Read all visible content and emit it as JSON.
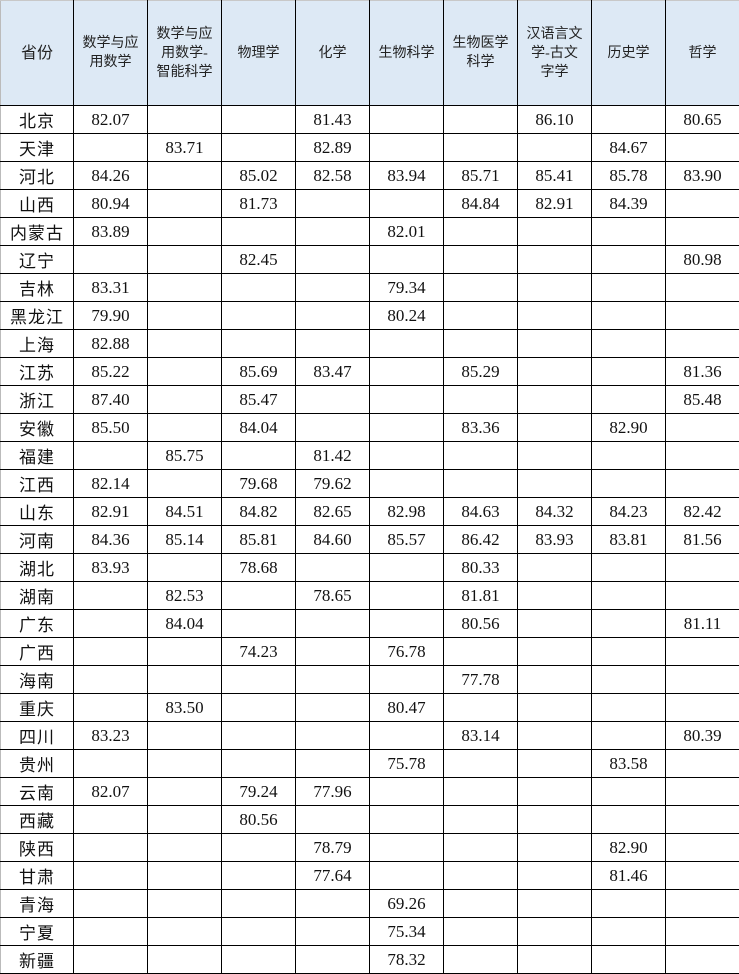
{
  "table": {
    "headers": [
      "省份",
      "数学与应\n用数学",
      "数学与应\n用数学-\n智能科学",
      "物理学",
      "化学",
      "生物科学",
      "生物医学\n科学",
      "汉语言文\n学-古文\n字学",
      "历史学",
      "哲学"
    ],
    "rows": [
      [
        "北京",
        "82.07",
        "",
        "",
        "81.43",
        "",
        "",
        "86.10",
        "",
        "80.65"
      ],
      [
        "天津",
        "",
        "83.71",
        "",
        "82.89",
        "",
        "",
        "",
        "84.67",
        ""
      ],
      [
        "河北",
        "84.26",
        "",
        "85.02",
        "82.58",
        "83.94",
        "85.71",
        "85.41",
        "85.78",
        "83.90"
      ],
      [
        "山西",
        "80.94",
        "",
        "81.73",
        "",
        "",
        "84.84",
        "82.91",
        "84.39",
        ""
      ],
      [
        "内蒙古",
        "83.89",
        "",
        "",
        "",
        "82.01",
        "",
        "",
        "",
        ""
      ],
      [
        "辽宁",
        "",
        "",
        "82.45",
        "",
        "",
        "",
        "",
        "",
        "80.98"
      ],
      [
        "吉林",
        "83.31",
        "",
        "",
        "",
        "79.34",
        "",
        "",
        "",
        ""
      ],
      [
        "黑龙江",
        "79.90",
        "",
        "",
        "",
        "80.24",
        "",
        "",
        "",
        ""
      ],
      [
        "上海",
        "82.88",
        "",
        "",
        "",
        "",
        "",
        "",
        "",
        ""
      ],
      [
        "江苏",
        "85.22",
        "",
        "85.69",
        "83.47",
        "",
        "85.29",
        "",
        "",
        "81.36"
      ],
      [
        "浙江",
        "87.40",
        "",
        "85.47",
        "",
        "",
        "",
        "",
        "",
        "85.48"
      ],
      [
        "安徽",
        "85.50",
        "",
        "84.04",
        "",
        "",
        "83.36",
        "",
        "82.90",
        ""
      ],
      [
        "福建",
        "",
        "85.75",
        "",
        "81.42",
        "",
        "",
        "",
        "",
        ""
      ],
      [
        "江西",
        "82.14",
        "",
        "79.68",
        "79.62",
        "",
        "",
        "",
        "",
        ""
      ],
      [
        "山东",
        "82.91",
        "84.51",
        "84.82",
        "82.65",
        "82.98",
        "84.63",
        "84.32",
        "84.23",
        "82.42"
      ],
      [
        "河南",
        "84.36",
        "85.14",
        "85.81",
        "84.60",
        "85.57",
        "86.42",
        "83.93",
        "83.81",
        "81.56"
      ],
      [
        "湖北",
        "83.93",
        "",
        "78.68",
        "",
        "",
        "80.33",
        "",
        "",
        ""
      ],
      [
        "湖南",
        "",
        "82.53",
        "",
        "78.65",
        "",
        "81.81",
        "",
        "",
        ""
      ],
      [
        "广东",
        "",
        "84.04",
        "",
        "",
        "",
        "80.56",
        "",
        "",
        "81.11"
      ],
      [
        "广西",
        "",
        "",
        "74.23",
        "",
        "76.78",
        "",
        "",
        "",
        ""
      ],
      [
        "海南",
        "",
        "",
        "",
        "",
        "",
        "77.78",
        "",
        "",
        ""
      ],
      [
        "重庆",
        "",
        "83.50",
        "",
        "",
        "80.47",
        "",
        "",
        "",
        ""
      ],
      [
        "四川",
        "83.23",
        "",
        "",
        "",
        "",
        "83.14",
        "",
        "",
        "80.39"
      ],
      [
        "贵州",
        "",
        "",
        "",
        "",
        "75.78",
        "",
        "",
        "83.58",
        ""
      ],
      [
        "云南",
        "82.07",
        "",
        "79.24",
        "77.96",
        "",
        "",
        "",
        "",
        ""
      ],
      [
        "西藏",
        "",
        "",
        "80.56",
        "",
        "",
        "",
        "",
        "",
        ""
      ],
      [
        "陕西",
        "",
        "",
        "",
        "78.79",
        "",
        "",
        "",
        "82.90",
        ""
      ],
      [
        "甘肃",
        "",
        "",
        "",
        "77.64",
        "",
        "",
        "",
        "81.46",
        ""
      ],
      [
        "青海",
        "",
        "",
        "",
        "",
        "69.26",
        "",
        "",
        "",
        ""
      ],
      [
        "宁夏",
        "",
        "",
        "",
        "",
        "75.34",
        "",
        "",
        "",
        ""
      ],
      [
        "新疆",
        "",
        "",
        "",
        "",
        "78.32",
        "",
        "",
        "",
        ""
      ]
    ]
  },
  "colors": {
    "header_bg": "#dde9f5",
    "grid": "#000000"
  }
}
